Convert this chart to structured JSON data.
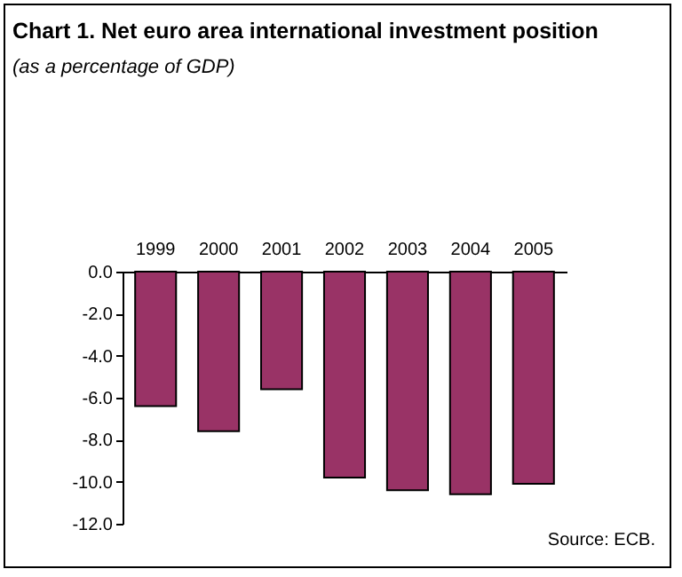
{
  "chart_data": {
    "type": "bar",
    "title": "Chart 1. Net euro area international investment position",
    "subtitle": "(as a percentage of GDP)",
    "categories": [
      "1999",
      "2000",
      "2001",
      "2002",
      "2003",
      "2004",
      "2005"
    ],
    "values": [
      -6.4,
      -7.6,
      -5.6,
      -9.8,
      -10.4,
      -10.6,
      -10.1
    ],
    "color": "#993366",
    "ylim": [
      -12,
      0
    ],
    "yticks": [
      {
        "value": 0,
        "label": "0.0"
      },
      {
        "value": -2,
        "label": "-2.0"
      },
      {
        "value": -4,
        "label": "-4.0"
      },
      {
        "value": -6,
        "label": "-6.0"
      },
      {
        "value": -8,
        "label": "-8.0"
      },
      {
        "value": -10,
        "label": "-10.0"
      },
      {
        "value": -12,
        "label": "-12.0"
      }
    ],
    "annotations": [
      "Source: ECB."
    ]
  }
}
